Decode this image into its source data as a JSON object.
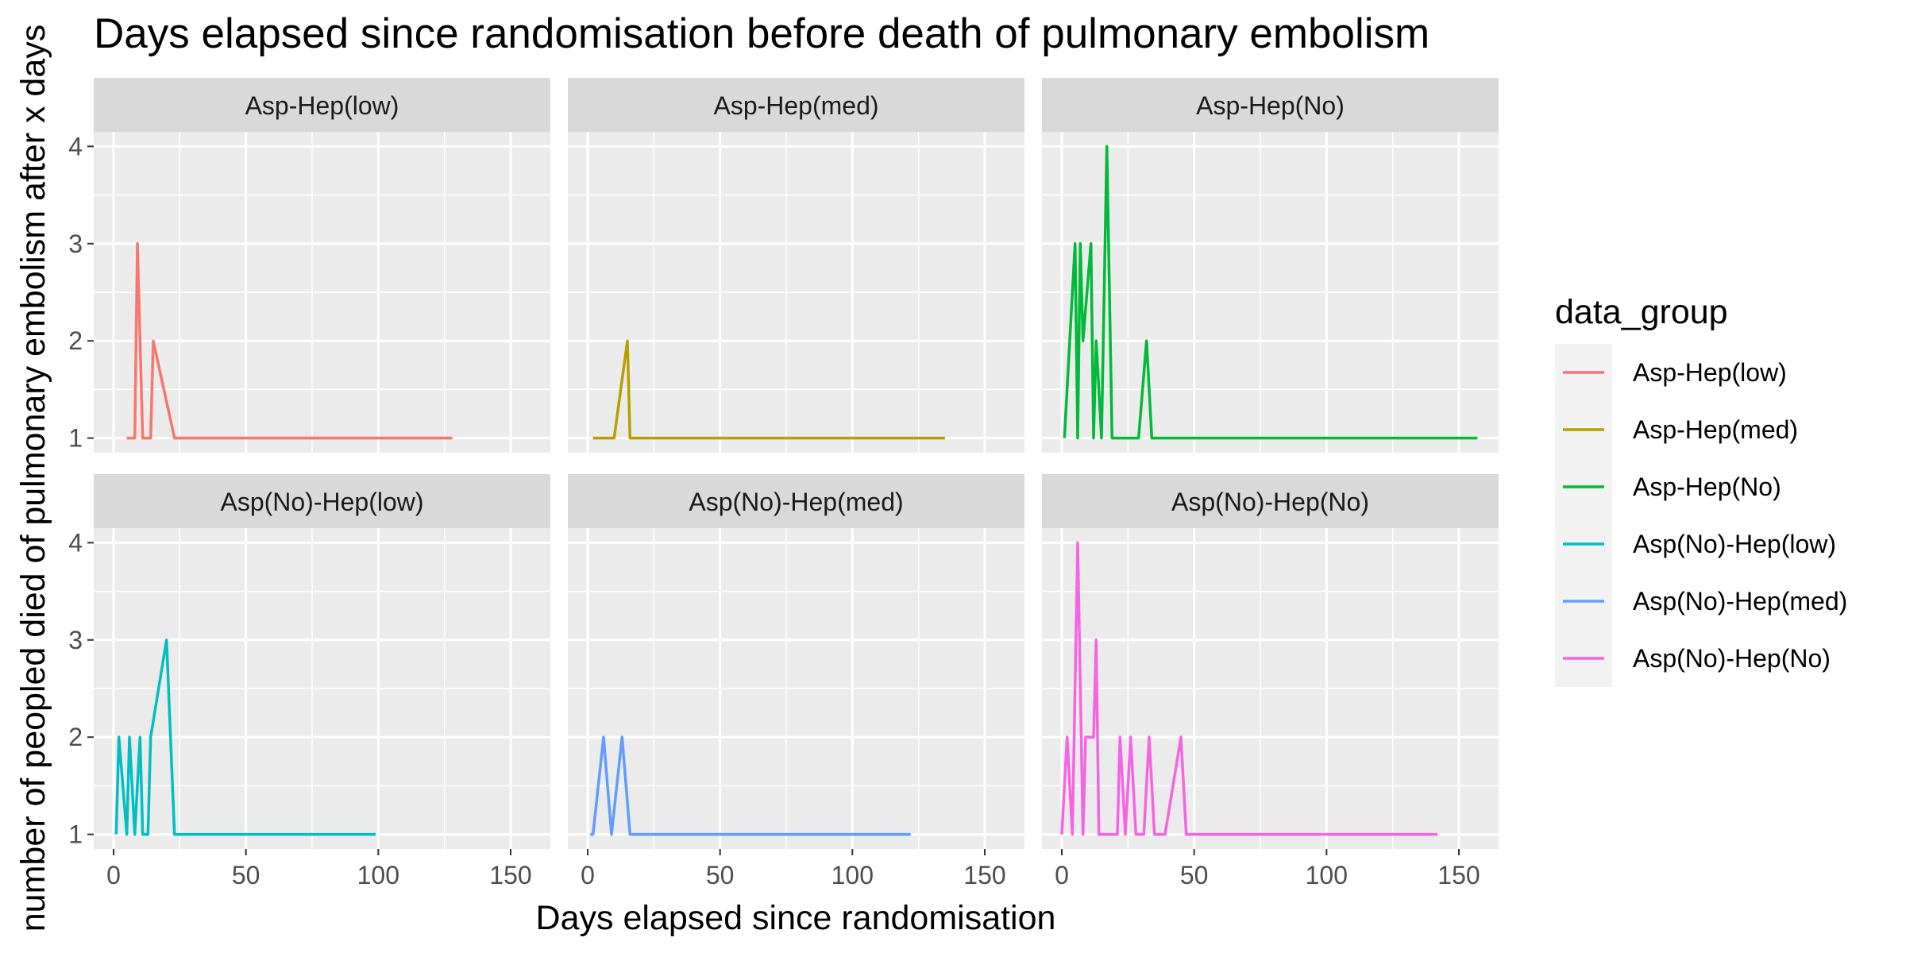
{
  "chart_data": {
    "type": "line",
    "title": "Days elapsed since randomisation before death of pulmonary embolism",
    "xlabel": "Days elapsed since randomisation",
    "ylabel": "number of peopled died of pulmonary embolism after x days",
    "xlim": [
      -7.5,
      165
    ],
    "ylim": [
      0.85,
      4.15
    ],
    "x_ticks": [
      0,
      50,
      100,
      150
    ],
    "x_tick_labels": [
      "0",
      "50",
      "100",
      "150"
    ],
    "y_ticks": [
      1,
      2,
      3,
      4
    ],
    "y_tick_labels": [
      "1",
      "2",
      "3",
      "4"
    ],
    "grid": true,
    "facet_layout": "2 rows x 3 columns",
    "legend": {
      "title": "data_group",
      "position": "right",
      "entries": [
        "Asp-Hep(low)",
        "Asp-Hep(med)",
        "Asp-Hep(No)",
        "Asp(No)-Hep(low)",
        "Asp(No)-Hep(med)",
        "Asp(No)-Hep(No)"
      ]
    },
    "series": [
      {
        "name": "Asp-Hep(low)",
        "color": "#F8766D",
        "x": [
          5,
          8,
          9,
          11,
          14,
          15,
          23,
          128
        ],
        "y": [
          1,
          1,
          3,
          1,
          1,
          2,
          1,
          1
        ]
      },
      {
        "name": "Asp-Hep(med)",
        "color": "#B79F00",
        "x": [
          2,
          10,
          15,
          16,
          135
        ],
        "y": [
          1,
          1,
          2,
          1,
          1
        ]
      },
      {
        "name": "Asp-Hep(No)",
        "color": "#00BA38",
        "x": [
          1,
          5,
          6,
          7,
          8,
          11,
          12,
          13,
          15,
          17,
          19,
          29,
          32,
          34,
          157
        ],
        "y": [
          1,
          3,
          1,
          3,
          2,
          3,
          1,
          2,
          1,
          4,
          1,
          1,
          2,
          1,
          1
        ]
      },
      {
        "name": "Asp(No)-Hep(low)",
        "color": "#00BFC4",
        "x": [
          1,
          2,
          5,
          6,
          8,
          10,
          11,
          13,
          14,
          20,
          23,
          99
        ],
        "y": [
          1,
          2,
          1,
          2,
          1,
          2,
          1,
          1,
          2,
          3,
          1,
          1
        ]
      },
      {
        "name": "Asp(No)-Hep(med)",
        "color": "#619CFF",
        "x": [
          1,
          2,
          6,
          9,
          13,
          16,
          122
        ],
        "y": [
          1,
          1,
          2,
          1,
          2,
          1,
          1
        ]
      },
      {
        "name": "Asp(No)-Hep(No)",
        "color": "#F564E3",
        "x": [
          0,
          2,
          4,
          6,
          8,
          9,
          12,
          13,
          14,
          21,
          22,
          24,
          26,
          28,
          31,
          33,
          35,
          39,
          45,
          47,
          142
        ],
        "y": [
          1,
          2,
          1,
          4,
          1,
          2,
          2,
          3,
          1,
          1,
          2,
          1,
          2,
          1,
          1,
          2,
          1,
          1,
          2,
          1,
          1
        ]
      }
    ]
  },
  "style": {
    "panel_bg": "#EBEBEB",
    "strip_bg": "#D9D9D9",
    "grid_color": "#FFFFFF",
    "tick_color": "#333333"
  }
}
